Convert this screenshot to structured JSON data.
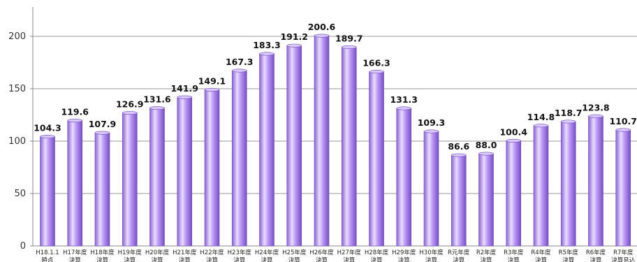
{
  "chart_data": {
    "type": "bar",
    "title": "",
    "xlabel": "",
    "ylabel": "",
    "ylim": [
      0,
      230
    ],
    "yticks": [
      0,
      50,
      100,
      150,
      200
    ],
    "grid": true,
    "legend": "none",
    "bar_color": "#b48ff0",
    "bar_color_light": "#e6d8ff",
    "bar_color_dark": "#7c58c4",
    "categories": [
      "H18.1.1 時点",
      "H17年度 決算",
      "H18年度 決算",
      "H19年度 決算",
      "H20年度 決算",
      "H21年度 決算",
      "H22年度 決算",
      "H23年度 決算",
      "H24年度 決算",
      "H25年度 決算",
      "H26年度 決算",
      "H27年度 決算",
      "H28年度 決算",
      "H29年度 決算",
      "H30年度 決算",
      "R元年度 決算",
      "R2年度 決算",
      "R3年度 決算",
      "R4年度 決算",
      "R5年度 決算",
      "R6年度 決算",
      "R7年度 決算見込"
    ],
    "values": [
      104.3,
      119.6,
      107.9,
      126.9,
      131.6,
      141.9,
      149.1,
      167.3,
      183.3,
      191.2,
      200.6,
      189.7,
      166.3,
      131.3,
      109.3,
      86.6,
      88.0,
      100.4,
      114.8,
      118.7,
      123.8,
      110.7
    ],
    "data_labels": [
      "104.3",
      "119.6",
      "107.9",
      "126.9",
      "131.6",
      "141.9",
      "149.1",
      "167.3",
      "183.3",
      "191.2",
      "200.6",
      "189.7",
      "166.3",
      "131.3",
      "109.3",
      "86.6",
      "88.0",
      "100.4",
      "114.8",
      "118.7",
      "123.8",
      "110.7"
    ]
  }
}
